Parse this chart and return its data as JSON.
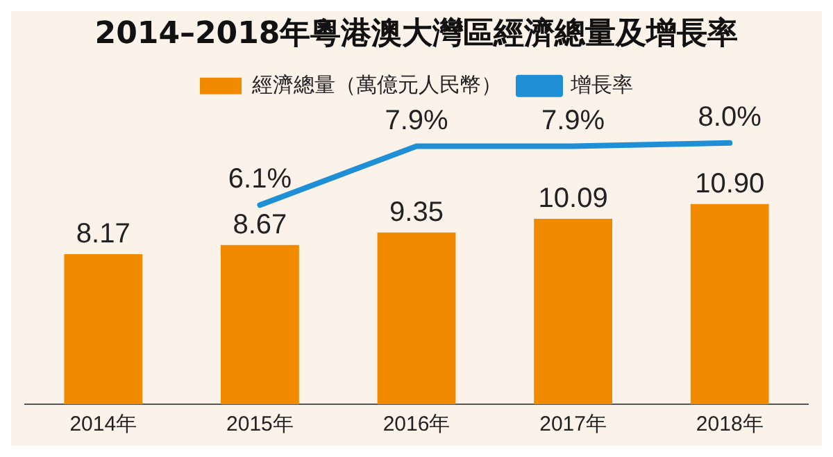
{
  "chart_data": {
    "type": "bar",
    "title": "2014–2018年粵港澳大灣區經濟總量及增長率",
    "categories": [
      "2014年",
      "2015年",
      "2016年",
      "2017年",
      "2018年"
    ],
    "series": [
      {
        "name": "經濟總量（萬億元人民幣）",
        "color": "#f28a00",
        "values": [
          8.17,
          8.67,
          9.35,
          10.09,
          10.9
        ],
        "value_labels": [
          "8.17",
          "8.67",
          "9.35",
          "10.09",
          "10.90"
        ]
      },
      {
        "name": "增長率",
        "type": "line",
        "axis": "y2",
        "color": "#1f8fd6",
        "values": [
          null,
          6.1,
          7.9,
          7.9,
          8.0
        ],
        "value_labels": [
          null,
          "6.1%",
          "7.9%",
          "7.9%",
          "8.0%"
        ]
      }
    ],
    "legend": "top",
    "grid": false,
    "tick_labels": "x",
    "marker": "none",
    "line_style": "solid"
  }
}
